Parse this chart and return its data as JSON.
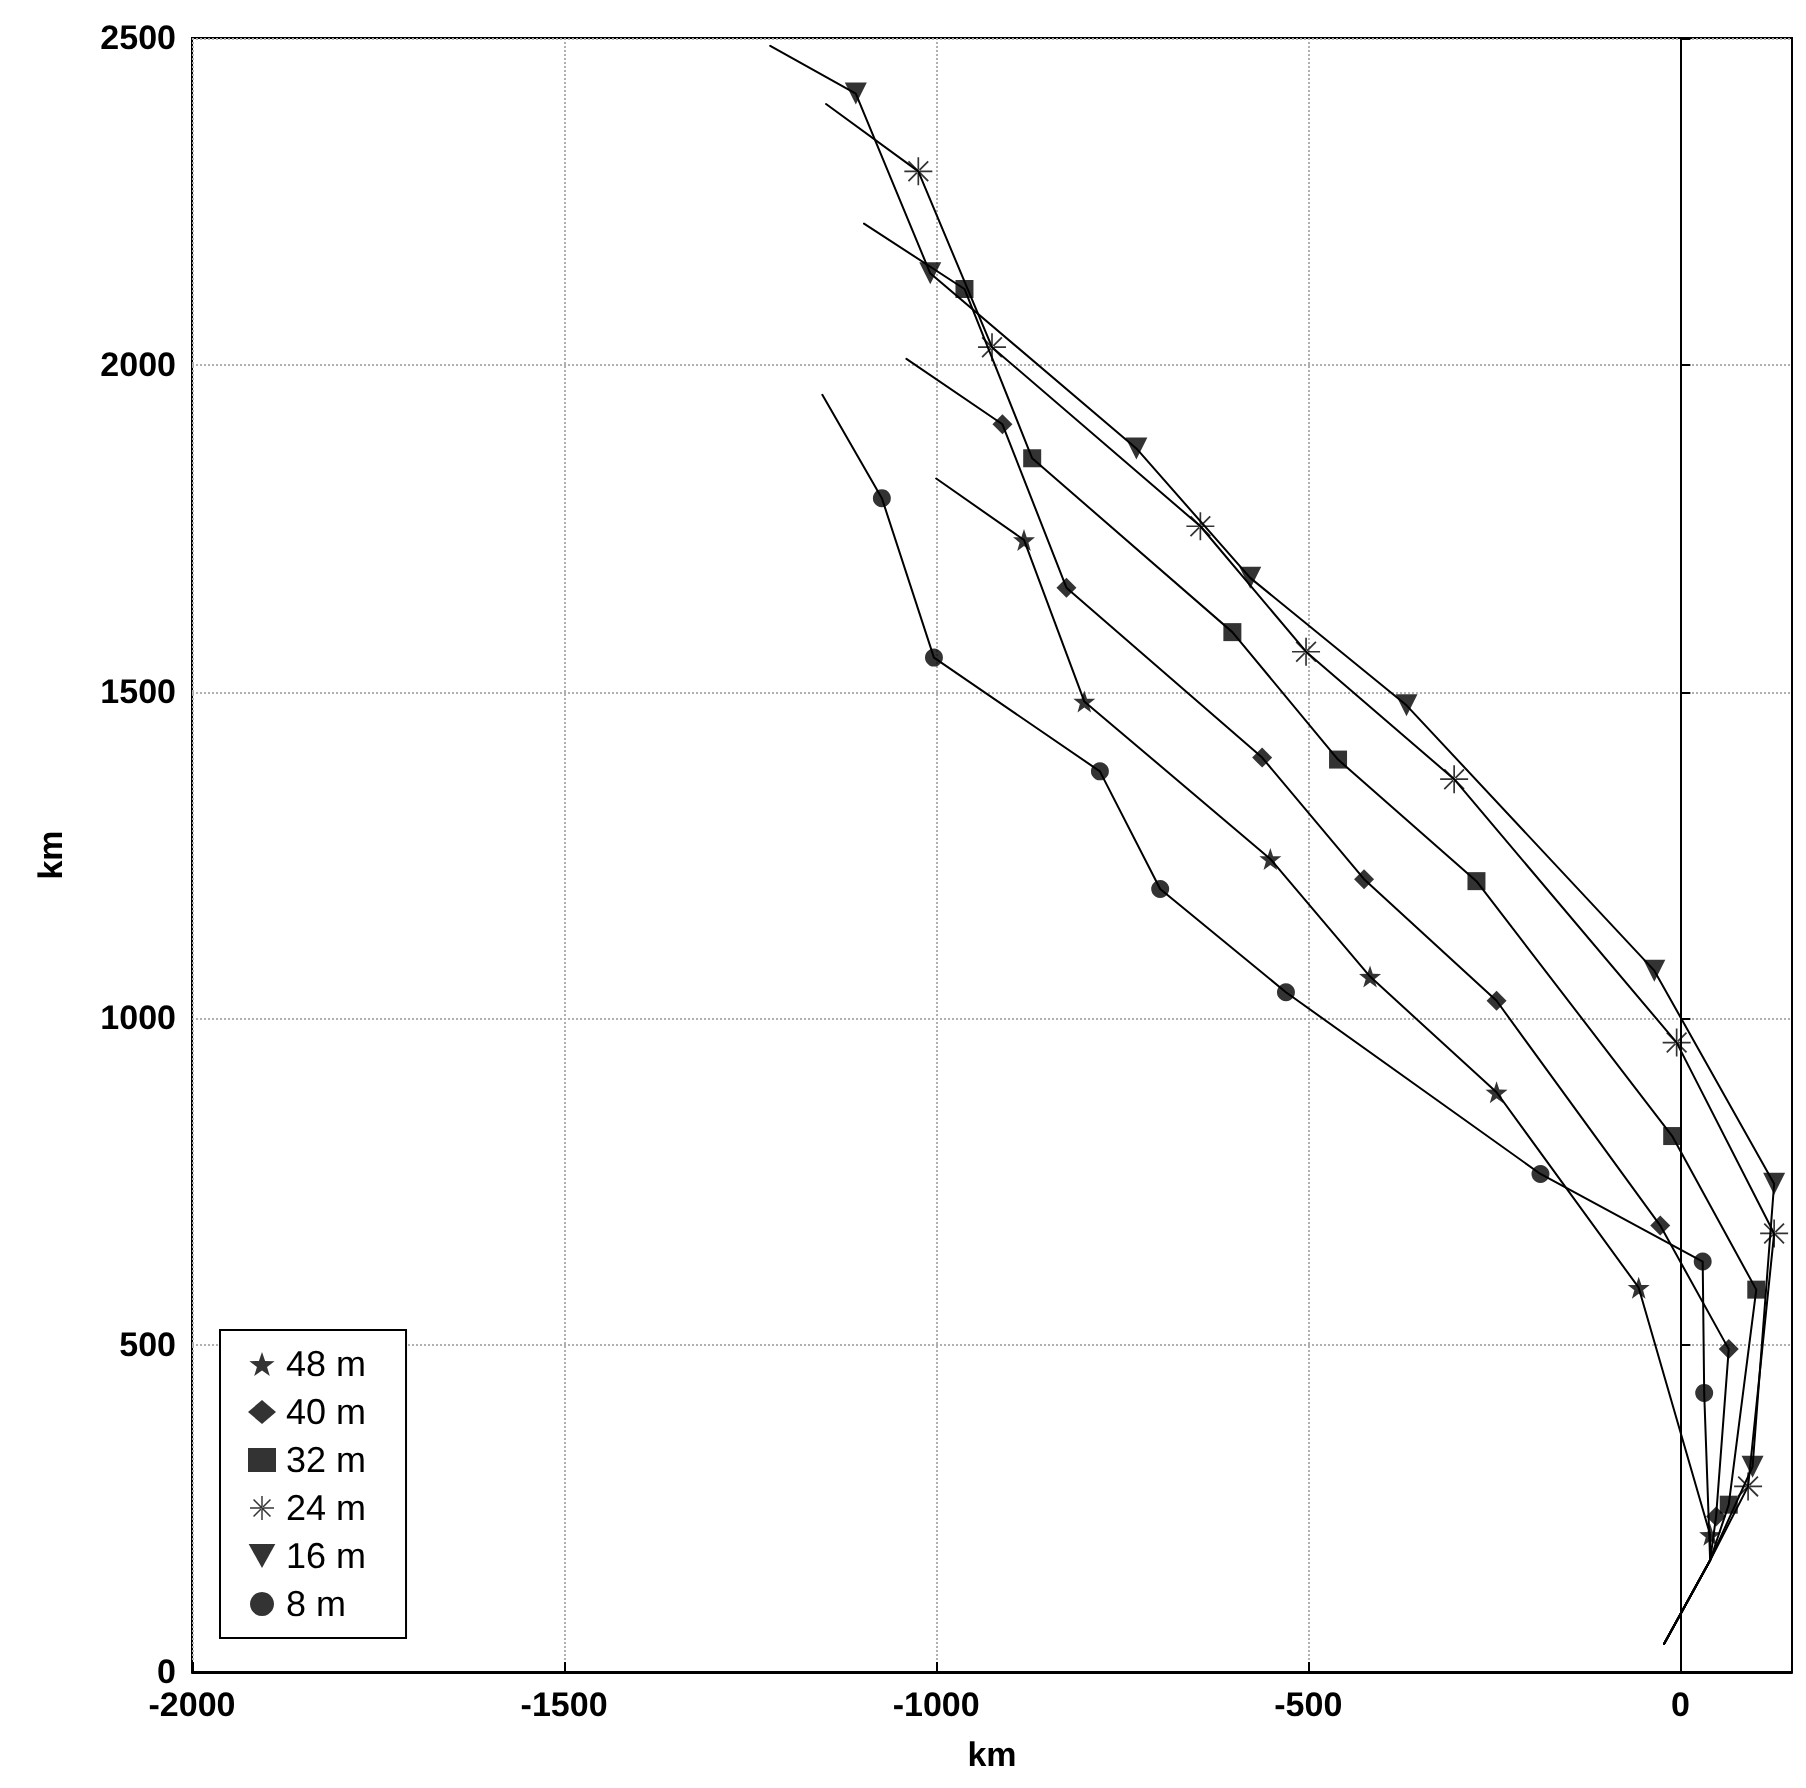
{
  "chart_data": {
    "type": "line",
    "xlabel": "km",
    "ylabel": "km",
    "xlim": [
      -2000,
      150
    ],
    "xticks": [
      -2000,
      -1500,
      -1000,
      -500,
      0
    ],
    "ylim": [
      0,
      2500
    ],
    "yticks": [
      0,
      500,
      1000,
      1500,
      2000,
      2500
    ],
    "grid": true,
    "legend": "bottom left",
    "series": [
      {
        "type": "line",
        "color": "#000000",
        "marker": "none",
        "x": [
          -22,
          40,
          40,
          -56,
          -247,
          -417,
          -551,
          -801,
          -882,
          -1000
        ],
        "values": [
          43,
          171,
          210,
          588,
          887,
          1064,
          1244,
          1485,
          1732,
          1826
        ]
      },
      {
        "type": "line",
        "color": "#000000",
        "marker": "none",
        "x": [
          -22,
          40,
          48,
          65,
          -27,
          -247,
          -425,
          -562,
          -825,
          -911,
          -1040
        ],
        "values": [
          43,
          171,
          238,
          494,
          683,
          1027,
          1213,
          1399,
          1659,
          1909,
          2009
        ]
      },
      {
        "type": "line",
        "color": "#000000",
        "marker": "none",
        "x": [
          -22,
          40,
          65,
          102,
          -11,
          -274,
          -460,
          -602,
          -871,
          -962,
          -1097
        ],
        "values": [
          43,
          171,
          256,
          585,
          820,
          1210,
          1396,
          1591,
          1857,
          2116,
          2216
        ]
      },
      {
        "type": "line",
        "color": "#000000",
        "marker": "none",
        "x": [
          -22,
          40,
          91,
          126,
          -5,
          -304,
          -503,
          -645,
          -925,
          -1024,
          -1148
        ],
        "values": [
          43,
          171,
          284,
          671,
          963,
          1366,
          1561,
          1753,
          2027,
          2296,
          2399
        ]
      },
      {
        "type": "line",
        "color": "#000000",
        "marker": "none",
        "x": [
          -22,
          40,
          97,
          126,
          -35,
          -368,
          -578,
          -731,
          -1008,
          -1108,
          -1223
        ],
        "values": [
          43,
          171,
          314,
          747,
          1073,
          1479,
          1674,
          1872,
          2140,
          2415,
          2488
        ]
      },
      {
        "type": "line",
        "color": "#000000",
        "marker": "none",
        "x": [
          -22,
          40,
          32,
          30,
          -188,
          -530,
          -699,
          -780,
          -1003,
          -1073,
          -1153
        ],
        "values": [
          43,
          171,
          427,
          628,
          762,
          1040,
          1198,
          1378,
          1552,
          1796,
          1954
        ]
      },
      {
        "type": "scatter",
        "name": "48 m",
        "color": "#000000",
        "marker": "star",
        "x": [
          40,
          -56,
          -247,
          -417,
          -551,
          -801,
          -882
        ],
        "values": [
          210,
          588,
          887,
          1064,
          1244,
          1485,
          1732
        ]
      },
      {
        "type": "scatter",
        "name": "40 m",
        "color": "#000000",
        "marker": "diamond",
        "x": [
          48,
          65,
          -27,
          -247,
          -425,
          -562,
          -825,
          -911
        ],
        "values": [
          238,
          494,
          683,
          1027,
          1213,
          1399,
          1659,
          1909
        ]
      },
      {
        "type": "scatter",
        "name": "32 m",
        "color": "#000000",
        "marker": "square",
        "x": [
          65,
          102,
          -11,
          -274,
          -460,
          -602,
          -871,
          -962
        ],
        "values": [
          256,
          585,
          820,
          1210,
          1396,
          1591,
          1857,
          2116
        ]
      },
      {
        "type": "scatter",
        "name": "24 m",
        "color": "#000000",
        "marker": "cross",
        "x": [
          91,
          126,
          -5,
          -304,
          -503,
          -645,
          -925,
          -1024
        ],
        "values": [
          284,
          671,
          963,
          1366,
          1561,
          1753,
          2027,
          2296
        ]
      },
      {
        "type": "scatter",
        "name": "16 m",
        "color": "#000000",
        "marker": "triangle",
        "x": [
          97,
          126,
          -35,
          -368,
          -578,
          -731,
          -1008,
          -1108
        ],
        "values": [
          314,
          747,
          1073,
          1479,
          1674,
          1872,
          2140,
          2415
        ]
      },
      {
        "type": "scatter",
        "name": "8 m",
        "color": "#000000",
        "marker": "circle",
        "x": [
          32,
          30,
          -188,
          -530,
          -699,
          -780,
          -1003,
          -1073
        ],
        "values": [
          427,
          628,
          762,
          1040,
          1198,
          1378,
          1552,
          1796
        ]
      }
    ]
  }
}
